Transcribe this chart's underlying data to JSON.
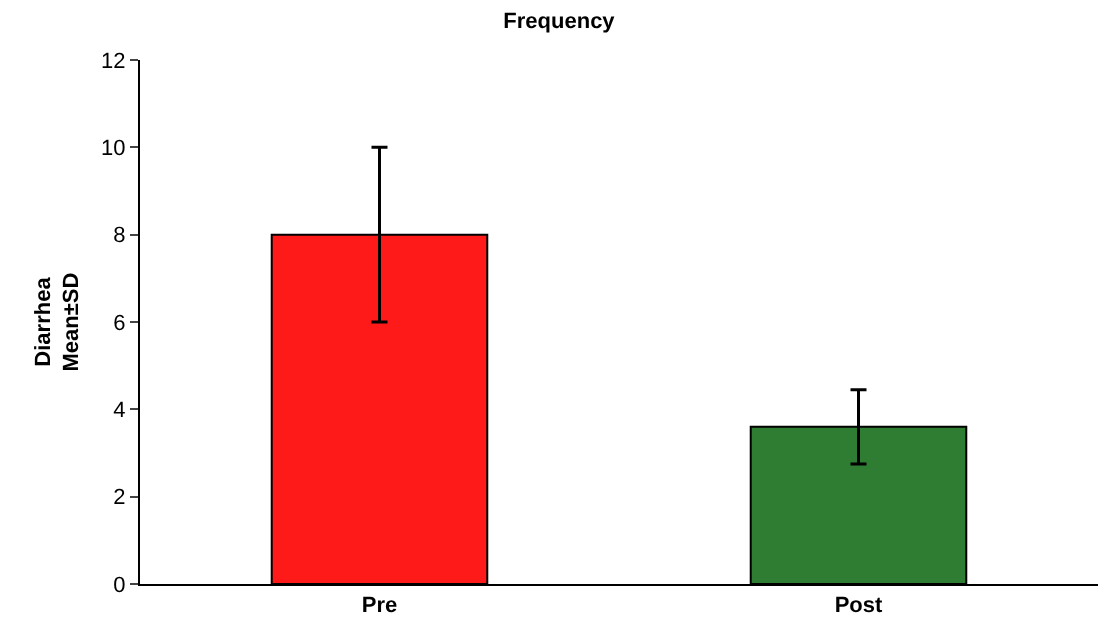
{
  "chart_data": {
    "type": "bar",
    "title": "Frequency",
    "ylabel": "Diarrhea\nMean±SD",
    "categories": [
      "Pre",
      "Post"
    ],
    "values": [
      8,
      3.6
    ],
    "errors": [
      2,
      0.85
    ],
    "colors": [
      "#ff1a1a",
      "#2e7d32"
    ],
    "ylim": [
      0,
      12
    ],
    "yticks": [
      0,
      2,
      4,
      6,
      8,
      10,
      12
    ]
  }
}
